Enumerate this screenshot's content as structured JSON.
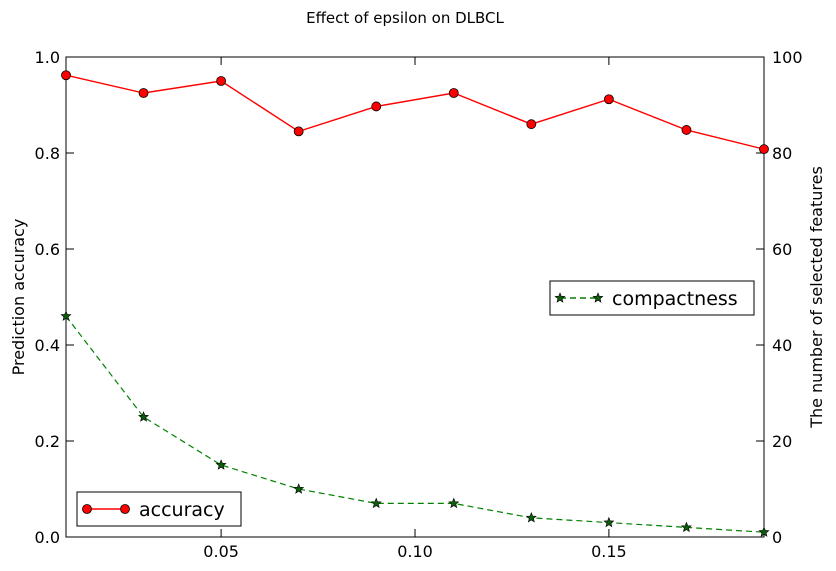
{
  "chart_data": {
    "type": "line",
    "title": "Effect of epsilon on DLBCL",
    "xlabel": "",
    "ylabel": "Prediction accuracy",
    "y2label": "The number of selected features",
    "xlim": [
      0.01,
      0.19
    ],
    "ylim": [
      0.0,
      1.0
    ],
    "y2lim": [
      0,
      100
    ],
    "xticks": [
      0.05,
      0.1,
      0.15
    ],
    "xtick_labels": [
      "0.05",
      "0.10",
      "0.15"
    ],
    "yticks": [
      0.0,
      0.2,
      0.4,
      0.6,
      0.8,
      1.0
    ],
    "ytick_labels": [
      "0.0",
      "0.2",
      "0.4",
      "0.6",
      "0.8",
      "1.0"
    ],
    "y2ticks": [
      0,
      20,
      40,
      60,
      80,
      100
    ],
    "y2tick_labels": [
      "0",
      "20",
      "40",
      "60",
      "80",
      "100"
    ],
    "x": [
      0.01,
      0.03,
      0.05,
      0.07,
      0.09,
      0.11,
      0.13,
      0.15,
      0.17,
      0.19
    ],
    "series": [
      {
        "name": "accuracy",
        "axis": "left",
        "color": "#ff0000",
        "marker": "circle",
        "linestyle": "solid",
        "values": [
          0.962,
          0.925,
          0.95,
          0.845,
          0.897,
          0.925,
          0.86,
          0.912,
          0.848,
          0.808
        ]
      },
      {
        "name": "compactness",
        "axis": "right",
        "color": "#008000",
        "marker": "star",
        "linestyle": "dashed",
        "values": [
          46,
          25,
          15,
          10,
          7,
          7,
          4,
          3,
          2,
          1
        ]
      }
    ],
    "legends": [
      {
        "series": "accuracy",
        "position": "lower-left"
      },
      {
        "series": "compactness",
        "position": "center-right"
      }
    ],
    "grid": false
  }
}
